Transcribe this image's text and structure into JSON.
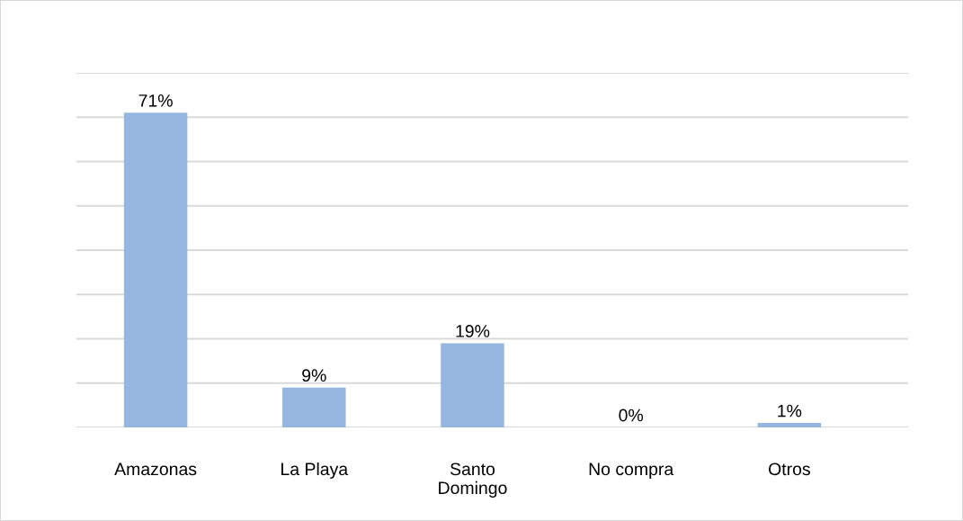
{
  "chart_data": {
    "type": "bar",
    "categories": [
      "Amazonas",
      "La Playa",
      "Santo\nDomingo",
      "No compra",
      "Otros"
    ],
    "values": [
      71,
      9,
      19,
      0,
      1
    ],
    "value_labels": [
      "71%",
      "9%",
      "19%",
      "0%",
      "1%"
    ],
    "color": "#95b6df",
    "ylim": [
      0,
      80
    ],
    "yticks": [
      {
        "value": 0,
        "label": null
      },
      {
        "value": 10,
        "label": null
      },
      {
        "value": 20,
        "label": null
      },
      {
        "value": 30,
        "label": null
      },
      {
        "value": 40,
        "label": null
      },
      {
        "value": 50,
        "label": null
      },
      {
        "value": 60,
        "label": null
      },
      {
        "value": 70,
        "label": null
      },
      {
        "value": 80,
        "label": null
      }
    ],
    "tick_labels": "x",
    "grid": "y",
    "legend": false
  }
}
